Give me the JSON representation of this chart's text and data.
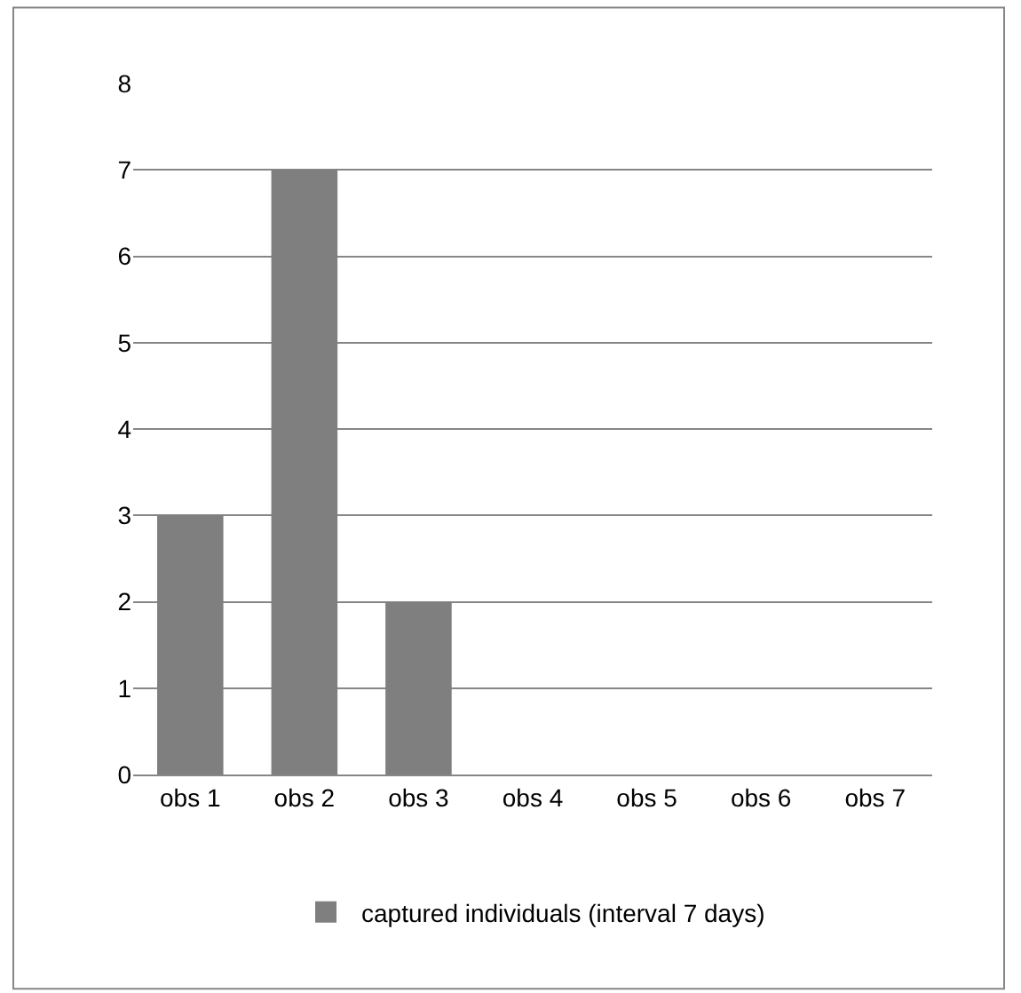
{
  "chart_data": {
    "type": "bar",
    "categories": [
      "obs 1",
      "obs 2",
      "obs 3",
      "obs 4",
      "obs 5",
      "obs 6",
      "obs 7"
    ],
    "series": [
      {
        "name": "captured individuals (interval 7 days)",
        "color": "#7f7f7f",
        "values": [
          3,
          7,
          2,
          0,
          0,
          0,
          0
        ]
      }
    ],
    "ylim": [
      0,
      8
    ],
    "yticks": [
      0,
      1,
      2,
      3,
      4,
      5,
      6,
      7,
      8
    ],
    "grid": "y",
    "legend": "bottom"
  }
}
